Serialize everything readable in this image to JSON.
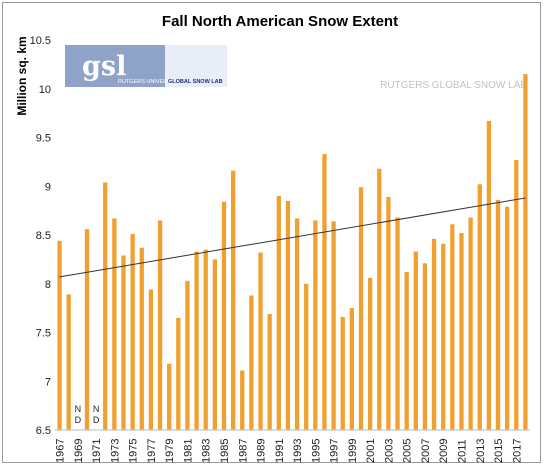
{
  "chart_data": {
    "type": "bar",
    "title": "Fall North American Snow Extent",
    "ylabel": "Million sq. km",
    "xlabel": "",
    "ylim": [
      6.5,
      10.5
    ],
    "yticks": [
      "6.5",
      "7",
      "7.5",
      "8",
      "8.5",
      "9",
      "9.5",
      "10",
      "10.5"
    ],
    "bar_color": "#f0a030",
    "trend_color": "#333333",
    "grid": false,
    "categories": [
      "1967",
      "1968",
      "1969",
      "1970",
      "1971",
      "1972",
      "1973",
      "1974",
      "1975",
      "1976",
      "1977",
      "1978",
      "1979",
      "1980",
      "1981",
      "1982",
      "1983",
      "1984",
      "1985",
      "1986",
      "1987",
      "1988",
      "1989",
      "1990",
      "1991",
      "1992",
      "1993",
      "1994",
      "1995",
      "1996",
      "1997",
      "1998",
      "1999",
      "2000",
      "2001",
      "2002",
      "2003",
      "2004",
      "2005",
      "2006",
      "2007",
      "2008",
      "2009",
      "2010",
      "2011",
      "2012",
      "2013",
      "2014",
      "2015",
      "2016",
      "2017",
      "2018"
    ],
    "xtick_labels": [
      "1967",
      "1969",
      "1971",
      "1973",
      "1975",
      "1977",
      "1979",
      "1981",
      "1983",
      "1985",
      "1987",
      "1989",
      "1991",
      "1993",
      "1995",
      "1997",
      "1999",
      "2001",
      "2003",
      "2005",
      "2007",
      "2009",
      "2011",
      "2013",
      "2015",
      "2017"
    ],
    "values": [
      8.44,
      7.89,
      null,
      8.56,
      null,
      9.04,
      8.67,
      8.29,
      8.51,
      8.37,
      7.94,
      8.65,
      7.18,
      7.65,
      8.03,
      8.33,
      8.35,
      8.25,
      8.84,
      9.16,
      7.11,
      7.88,
      8.32,
      7.69,
      8.9,
      8.85,
      8.67,
      8.0,
      8.65,
      9.33,
      8.64,
      7.66,
      7.75,
      8.99,
      8.06,
      9.18,
      8.89,
      8.68,
      8.12,
      8.33,
      8.21,
      8.46,
      8.41,
      8.61,
      8.52,
      8.68,
      9.02,
      9.67,
      8.86,
      8.79,
      9.27,
      10.15
    ],
    "missing_label": [
      "N",
      "D"
    ],
    "trend": {
      "start": 8.07,
      "end": 8.88
    }
  },
  "logo": {
    "main": "gsl",
    "sub1": "RUTGERS UNIVERSITY",
    "sub2": "GLOBAL SNOW LAB"
  },
  "watermark": "RUTGERS GLOBAL SNOW LAB"
}
